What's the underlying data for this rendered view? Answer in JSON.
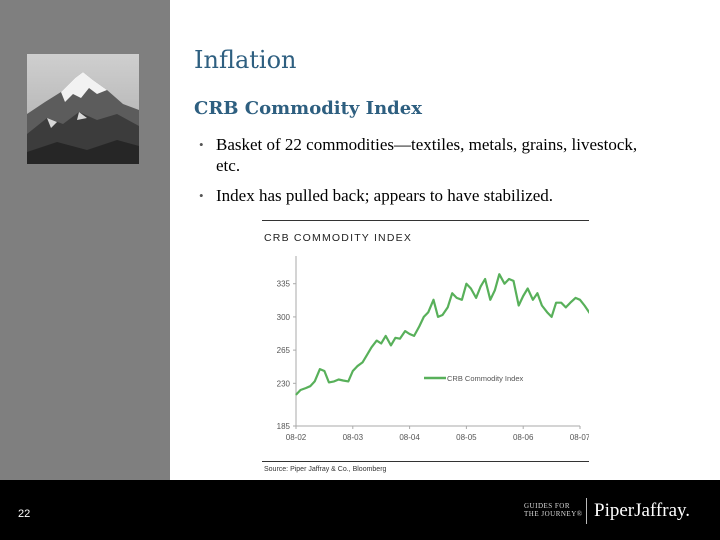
{
  "slide": {
    "title": "Inflation",
    "subtitle": "CRB Commodity Index",
    "bullets": [
      "Basket of 22 commodities—textiles, metals, grains, livestock, etc.",
      "Index has pulled back; appears to have stabilized."
    ],
    "page_number": "22"
  },
  "footer": {
    "logo_guides_line1": "GUIDES FOR",
    "logo_guides_line2": "THE JOURNEY®",
    "logo_main": "PiperJaffray."
  },
  "colors": {
    "title": "#2e5f80",
    "line": "#58b05a",
    "sidebar": "#7f7f7f",
    "footer": "#000000"
  },
  "chart_data": {
    "type": "line",
    "title": "CRB COMMODITY INDEX",
    "source": "Source: Piper Jaffray & Co., Bloomberg",
    "xlabel": "",
    "ylabel": "",
    "ylim": [
      185,
      360
    ],
    "yticks": [
      185,
      230,
      265,
      300,
      335
    ],
    "xticks": [
      "08-02",
      "08-03",
      "08-04",
      "08-05",
      "08-06",
      "08-07"
    ],
    "grid": false,
    "legend": "center-right",
    "series": [
      {
        "name": "CRB Commodity Index",
        "x": [
          0,
          0.08,
          0.17,
          0.25,
          0.33,
          0.42,
          0.5,
          0.58,
          0.67,
          0.75,
          0.83,
          0.92,
          1,
          1.08,
          1.17,
          1.25,
          1.33,
          1.42,
          1.5,
          1.58,
          1.67,
          1.75,
          1.83,
          1.92,
          2,
          2.08,
          2.17,
          2.25,
          2.33,
          2.42,
          2.5,
          2.58,
          2.67,
          2.75,
          2.83,
          2.92,
          3,
          3.08,
          3.17,
          3.25,
          3.33,
          3.42,
          3.5,
          3.58,
          3.67,
          3.75,
          3.83,
          3.92,
          4,
          4.08,
          4.17,
          4.25,
          4.33,
          4.42,
          4.5,
          4.58,
          4.67,
          4.75,
          4.83,
          4.92,
          5,
          5.08,
          5.17
        ],
        "y": [
          218,
          223,
          225,
          227,
          232,
          245,
          243,
          231,
          232,
          234,
          233,
          232,
          243,
          248,
          252,
          260,
          268,
          275,
          272,
          280,
          270,
          278,
          277,
          285,
          282,
          280,
          290,
          300,
          305,
          318,
          300,
          302,
          310,
          325,
          320,
          318,
          335,
          330,
          320,
          332,
          340,
          318,
          328,
          345,
          335,
          340,
          338,
          312,
          322,
          330,
          318,
          325,
          312,
          305,
          300,
          315,
          315,
          310,
          315,
          320,
          318,
          312,
          304
        ]
      }
    ]
  }
}
